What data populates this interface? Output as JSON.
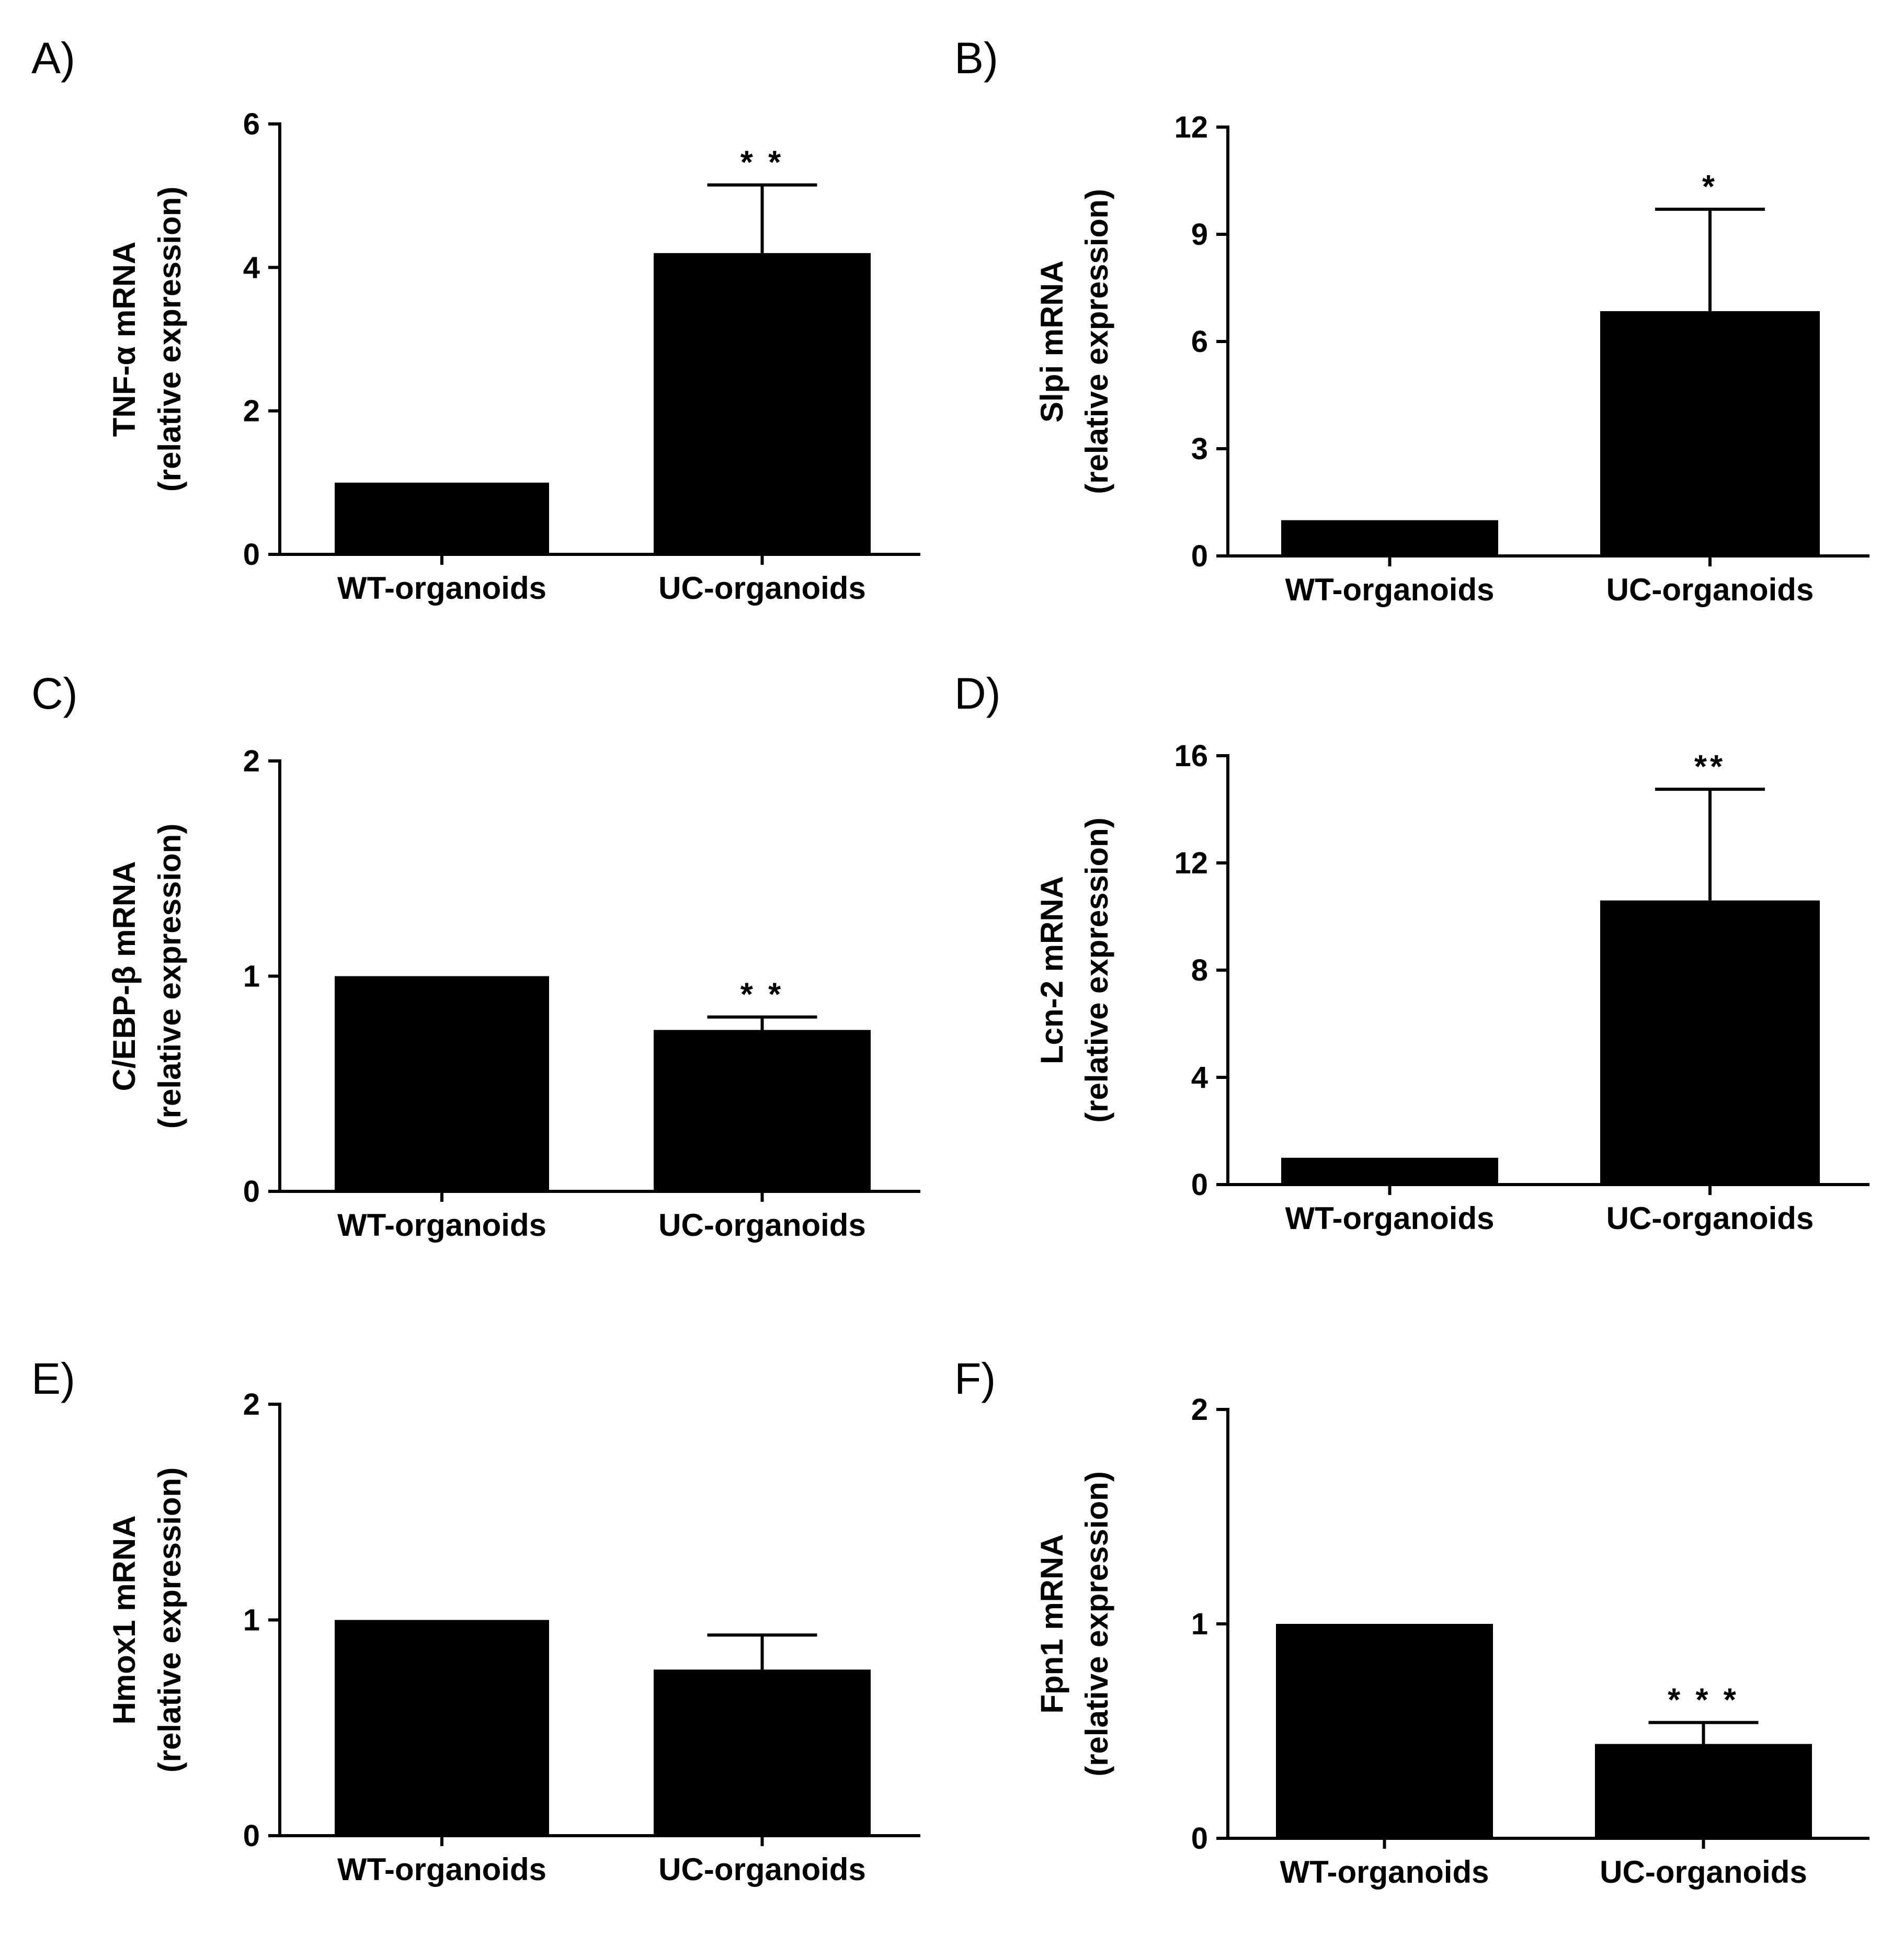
{
  "chart_data": [
    {
      "panel": "A)",
      "type": "bar",
      "categories": [
        "WT-organoids",
        "UC-organoids"
      ],
      "values": [
        1.0,
        4.2
      ],
      "errors": [
        0,
        0.95
      ],
      "significance": [
        "",
        "* *"
      ],
      "ylabel_line1": "TNF-α mRNA",
      "ylabel_line2": "(relative expression)",
      "ylim": [
        0,
        6
      ],
      "yticks": [
        0,
        2,
        4,
        6
      ],
      "ytick_labels": [
        "0",
        "2",
        "4",
        "6"
      ]
    },
    {
      "panel": "B)",
      "type": "bar",
      "categories": [
        "WT-organoids",
        "UC-organoids"
      ],
      "values": [
        1.0,
        6.85
      ],
      "errors": [
        0,
        2.85
      ],
      "significance": [
        "",
        "*"
      ],
      "ylabel_line1": "Slpi mRNA",
      "ylabel_line2": "(relative expression)",
      "ylim": [
        0,
        12
      ],
      "yticks": [
        0,
        3,
        6,
        9,
        12
      ],
      "ytick_labels": [
        "0",
        "3",
        "6",
        "9",
        "12"
      ]
    },
    {
      "panel": "C)",
      "type": "bar",
      "categories": [
        "WT-organoids",
        "UC-organoids"
      ],
      "values": [
        1.0,
        0.75
      ],
      "errors": [
        0,
        0.06
      ],
      "significance": [
        "",
        "* *"
      ],
      "ylabel_line1": "C/EBP-β mRNA",
      "ylabel_line2": "(relative expression)",
      "ylim": [
        0,
        2
      ],
      "yticks": [
        0,
        1,
        2
      ],
      "ytick_labels": [
        "0",
        "1",
        "2"
      ]
    },
    {
      "panel": "D)",
      "type": "bar",
      "categories": [
        "WT-organoids",
        "UC-organoids"
      ],
      "values": [
        1.0,
        10.6
      ],
      "errors": [
        0,
        4.15
      ],
      "significance": [
        "",
        "**"
      ],
      "ylabel_line1": "Lcn-2 mRNA",
      "ylabel_line2": "(relative expression)",
      "ylim": [
        0,
        16
      ],
      "yticks": [
        0,
        4,
        8,
        12,
        16
      ],
      "ytick_labels": [
        "0",
        "4",
        "8",
        "12",
        "16"
      ]
    },
    {
      "panel": "E)",
      "type": "bar",
      "categories": [
        "WT-organoids",
        "UC-organoids"
      ],
      "values": [
        1.0,
        0.77
      ],
      "errors": [
        0,
        0.16
      ],
      "significance": [
        "",
        ""
      ],
      "ylabel_line1": "Hmox1 mRNA",
      "ylabel_line2": "(relative expression)",
      "ylim": [
        0,
        2
      ],
      "yticks": [
        0,
        1,
        2
      ],
      "ytick_labels": [
        "0",
        "1",
        "2"
      ]
    },
    {
      "panel": "F)",
      "type": "bar",
      "categories": [
        "WT-organoids",
        "UC-organoids"
      ],
      "values": [
        1.0,
        0.44
      ],
      "errors": [
        0,
        0.1
      ],
      "significance": [
        "",
        "* * *"
      ],
      "ylabel_line1": "Fpn1 mRNA",
      "ylabel_line2": "(relative expression)",
      "ylim": [
        0,
        2
      ],
      "yticks": [
        0,
        1,
        2
      ],
      "ytick_labels": [
        "0",
        "1",
        "2"
      ]
    }
  ]
}
